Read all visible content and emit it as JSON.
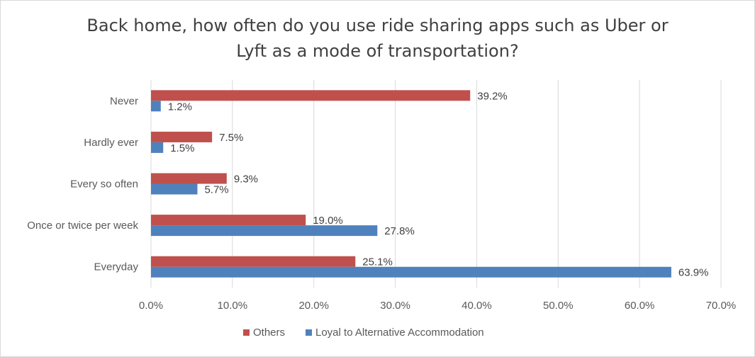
{
  "chart_data": {
    "type": "bar",
    "orientation": "horizontal",
    "title": "Back home, how often do you use ride sharing apps such as Uber or Lyft as a mode of transportation?",
    "title_lines": [
      "Back home, how often do you use ride sharing apps such as Uber or",
      "Lyft as a mode of transportation?"
    ],
    "categories": [
      "Never",
      "Hardly ever",
      "Every so often",
      "Once or twice per week",
      "Everyday"
    ],
    "series": [
      {
        "name": "Others",
        "color": "#c0504d",
        "values": [
          39.2,
          7.5,
          9.3,
          19.0,
          25.1
        ],
        "labels": [
          "39.2%",
          "7.5%",
          "9.3%",
          "19.0%",
          "25.1%"
        ]
      },
      {
        "name": "Loyal to Alternative Accommodation",
        "color": "#4f81bd",
        "values": [
          1.2,
          1.5,
          5.7,
          27.8,
          63.9
        ],
        "labels": [
          "1.2%",
          "1.5%",
          "5.7%",
          "27.8%",
          "63.9%"
        ]
      }
    ],
    "xlim": [
      0,
      70
    ],
    "xticks": [
      "0.0%",
      "10.0%",
      "20.0%",
      "30.0%",
      "40.0%",
      "50.0%",
      "60.0%",
      "70.0%"
    ],
    "grid": true,
    "legend": "bottom"
  }
}
